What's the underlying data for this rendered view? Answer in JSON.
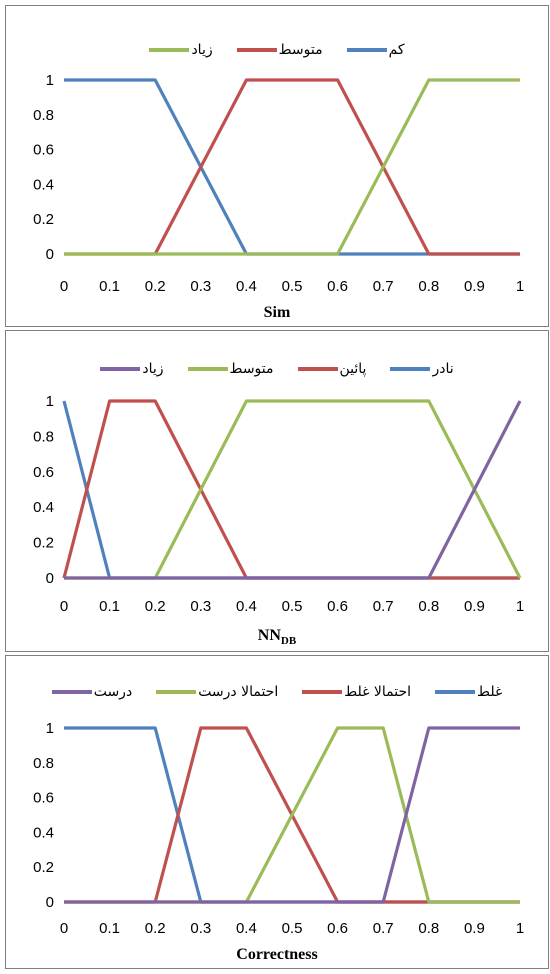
{
  "chart_data": [
    {
      "type": "line",
      "xlabel": "Sim",
      "xlim": [
        0,
        1
      ],
      "ylim": [
        0,
        1
      ],
      "xticks": [
        "0",
        "0.1",
        "0.2",
        "0.3",
        "0.4",
        "0.5",
        "0.6",
        "0.7",
        "0.8",
        "0.9",
        "1"
      ],
      "yticks": [
        "0",
        "0.2",
        "0.4",
        "0.6",
        "0.8",
        "1"
      ],
      "legend_position": "top",
      "series": [
        {
          "name": "کم",
          "color": "#4f81bd",
          "points": [
            [
              0,
              1
            ],
            [
              0.2,
              1
            ],
            [
              0.4,
              0
            ],
            [
              1,
              0
            ]
          ]
        },
        {
          "name": "متوسط",
          "color": "#c0504d",
          "points": [
            [
              0,
              0
            ],
            [
              0.2,
              0
            ],
            [
              0.4,
              1
            ],
            [
              0.6,
              1
            ],
            [
              0.8,
              0
            ],
            [
              1,
              0
            ]
          ]
        },
        {
          "name": "زیاد",
          "color": "#9bbb59",
          "points": [
            [
              0,
              0
            ],
            [
              0.6,
              0
            ],
            [
              0.8,
              1
            ],
            [
              1,
              1
            ]
          ]
        }
      ]
    },
    {
      "type": "line",
      "xlabel": "NN",
      "xlabel_sub": "DB",
      "xlim": [
        0,
        1
      ],
      "ylim": [
        0,
        1
      ],
      "xticks": [
        "0",
        "0.1",
        "0.2",
        "0.3",
        "0.4",
        "0.5",
        "0.6",
        "0.7",
        "0.8",
        "0.9",
        "1"
      ],
      "yticks": [
        "0",
        "0.2",
        "0.4",
        "0.6",
        "0.8",
        "1"
      ],
      "legend_position": "top",
      "series": [
        {
          "name": "نادر",
          "color": "#4f81bd",
          "points": [
            [
              0,
              1
            ],
            [
              0.1,
              0
            ],
            [
              1,
              0
            ]
          ]
        },
        {
          "name": "پائین",
          "color": "#c0504d",
          "points": [
            [
              0,
              0
            ],
            [
              0.1,
              1
            ],
            [
              0.2,
              1
            ],
            [
              0.4,
              0
            ],
            [
              1,
              0
            ]
          ]
        },
        {
          "name": "متوسط",
          "color": "#9bbb59",
          "points": [
            [
              0,
              0
            ],
            [
              0.2,
              0
            ],
            [
              0.4,
              1
            ],
            [
              0.8,
              1
            ],
            [
              1,
              0
            ]
          ]
        },
        {
          "name": "زیاد",
          "color": "#8064a2",
          "points": [
            [
              0,
              0
            ],
            [
              0.8,
              0
            ],
            [
              1,
              1
            ]
          ]
        }
      ]
    },
    {
      "type": "line",
      "xlabel": "Correctness",
      "xlim": [
        0,
        1
      ],
      "ylim": [
        0,
        1
      ],
      "xticks": [
        "0",
        "0.1",
        "0.2",
        "0.3",
        "0.4",
        "0.5",
        "0.6",
        "0.7",
        "0.8",
        "0.9",
        "1"
      ],
      "yticks": [
        "0",
        "0.2",
        "0.4",
        "0.6",
        "0.8",
        "1"
      ],
      "legend_position": "top",
      "series": [
        {
          "name": "غلط",
          "color": "#4f81bd",
          "points": [
            [
              0,
              1
            ],
            [
              0.2,
              1
            ],
            [
              0.3,
              0
            ],
            [
              1,
              0
            ]
          ]
        },
        {
          "name": "احتمالا غلط",
          "color": "#c0504d",
          "points": [
            [
              0,
              0
            ],
            [
              0.2,
              0
            ],
            [
              0.3,
              1
            ],
            [
              0.4,
              1
            ],
            [
              0.6,
              0
            ],
            [
              1,
              0
            ]
          ]
        },
        {
          "name": "احتمالا درست",
          "color": "#9bbb59",
          "points": [
            [
              0,
              0
            ],
            [
              0.4,
              0
            ],
            [
              0.6,
              1
            ],
            [
              0.7,
              1
            ],
            [
              0.8,
              0
            ],
            [
              1,
              0
            ]
          ]
        },
        {
          "name": "درست",
          "color": "#8064a2",
          "points": [
            [
              0,
              0
            ],
            [
              0.7,
              0
            ],
            [
              0.8,
              1
            ],
            [
              1,
              1
            ]
          ]
        }
      ]
    }
  ]
}
